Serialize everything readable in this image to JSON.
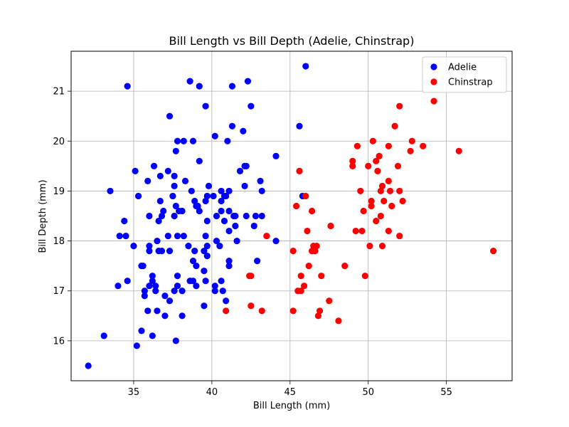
{
  "chart_data": {
    "type": "scatter",
    "title": "Bill Length vs Bill Depth (Adelie, Chinstrap)",
    "xlabel": "Bill Length (mm)",
    "ylabel": "Bill Depth (mm)",
    "xlim": [
      31.0,
      59.2
    ],
    "ylim": [
      15.2,
      21.8
    ],
    "xticks": [
      35,
      40,
      45,
      50,
      55
    ],
    "yticks": [
      16,
      17,
      18,
      19,
      20,
      21
    ],
    "grid": true,
    "legend_position": "top-right",
    "series": [
      {
        "name": "Adelie",
        "color": "#0000ff",
        "points": [
          [
            32.1,
            15.5
          ],
          [
            33.1,
            16.1
          ],
          [
            33.5,
            19.0
          ],
          [
            34.0,
            17.1
          ],
          [
            34.1,
            18.1
          ],
          [
            34.4,
            18.4
          ],
          [
            34.5,
            18.1
          ],
          [
            34.6,
            21.1
          ],
          [
            34.6,
            17.2
          ],
          [
            35.0,
            17.9
          ],
          [
            35.1,
            19.4
          ],
          [
            35.2,
            15.9
          ],
          [
            35.3,
            18.9
          ],
          [
            35.5,
            17.5
          ],
          [
            35.5,
            16.2
          ],
          [
            35.6,
            17.5
          ],
          [
            35.7,
            17.0
          ],
          [
            35.7,
            16.9
          ],
          [
            35.9,
            16.6
          ],
          [
            35.9,
            19.2
          ],
          [
            36.0,
            18.5
          ],
          [
            36.0,
            17.9
          ],
          [
            36.0,
            17.1
          ],
          [
            36.0,
            17.8
          ],
          [
            36.2,
            17.2
          ],
          [
            36.2,
            17.3
          ],
          [
            36.2,
            16.1
          ],
          [
            36.3,
            19.5
          ],
          [
            36.4,
            17.0
          ],
          [
            36.4,
            17.1
          ],
          [
            36.5,
            16.6
          ],
          [
            36.5,
            18.0
          ],
          [
            36.6,
            17.8
          ],
          [
            36.6,
            18.4
          ],
          [
            36.7,
            18.8
          ],
          [
            36.7,
            19.3
          ],
          [
            36.8,
            18.5
          ],
          [
            36.9,
            18.6
          ],
          [
            37.0,
            16.9
          ],
          [
            37.0,
            16.5
          ],
          [
            37.2,
            18.1
          ],
          [
            37.2,
            19.4
          ],
          [
            37.3,
            16.8
          ],
          [
            37.3,
            17.8
          ],
          [
            37.3,
            20.5
          ],
          [
            37.5,
            18.9
          ],
          [
            37.6,
            17.0
          ],
          [
            37.6,
            18.5
          ],
          [
            37.6,
            19.1
          ],
          [
            37.6,
            19.3
          ],
          [
            37.7,
            16.0
          ],
          [
            37.7,
            18.7
          ],
          [
            37.7,
            19.8
          ],
          [
            37.8,
            18.1
          ],
          [
            37.8,
            17.3
          ],
          [
            37.8,
            20.0
          ],
          [
            37.8,
            17.1
          ],
          [
            37.9,
            18.6
          ],
          [
            38.1,
            18.6
          ],
          [
            38.1,
            17.0
          ],
          [
            38.1,
            16.5
          ],
          [
            38.2,
            18.1
          ],
          [
            38.2,
            20.0
          ],
          [
            38.3,
            19.2
          ],
          [
            38.5,
            17.9
          ],
          [
            38.6,
            17.2
          ],
          [
            38.6,
            21.2
          ],
          [
            38.7,
            19.0
          ],
          [
            38.8,
            17.2
          ],
          [
            38.8,
            17.6
          ],
          [
            38.8,
            20.0
          ],
          [
            38.9,
            17.8
          ],
          [
            38.9,
            18.8
          ],
          [
            39.0,
            17.1
          ],
          [
            39.0,
            17.5
          ],
          [
            39.0,
            18.7
          ],
          [
            39.1,
            18.7
          ],
          [
            39.2,
            18.6
          ],
          [
            39.2,
            19.6
          ],
          [
            39.2,
            21.1
          ],
          [
            39.5,
            16.7
          ],
          [
            39.5,
            17.4
          ],
          [
            39.5,
            17.8
          ],
          [
            39.6,
            17.2
          ],
          [
            39.6,
            18.1
          ],
          [
            39.6,
            20.7
          ],
          [
            39.6,
            18.8
          ],
          [
            39.7,
            17.7
          ],
          [
            39.7,
            17.9
          ],
          [
            39.7,
            18.4
          ],
          [
            39.7,
            18.9
          ],
          [
            39.8,
            19.1
          ],
          [
            40.1,
            18.9
          ],
          [
            40.2,
            17.0
          ],
          [
            40.2,
            17.1
          ],
          [
            40.2,
            20.1
          ],
          [
            40.3,
            18.0
          ],
          [
            40.3,
            18.5
          ],
          [
            40.5,
            17.9
          ],
          [
            40.6,
            17.2
          ],
          [
            40.6,
            18.6
          ],
          [
            40.6,
            18.8
          ],
          [
            40.6,
            19.0
          ],
          [
            40.7,
            17.0
          ],
          [
            40.8,
            18.4
          ],
          [
            40.8,
            18.9
          ],
          [
            40.9,
            16.8
          ],
          [
            40.9,
            18.9
          ],
          [
            41.0,
            20.0
          ],
          [
            41.1,
            17.5
          ],
          [
            41.1,
            17.6
          ],
          [
            41.1,
            18.2
          ],
          [
            41.1,
            18.6
          ],
          [
            41.1,
            19.0
          ],
          [
            41.3,
            20.3
          ],
          [
            41.3,
            21.1
          ],
          [
            41.4,
            18.5
          ],
          [
            41.5,
            18.3
          ],
          [
            41.5,
            18.5
          ],
          [
            41.6,
            18.0
          ],
          [
            41.8,
            19.4
          ],
          [
            42.0,
            20.2
          ],
          [
            42.1,
            19.1
          ],
          [
            42.2,
            18.5
          ],
          [
            42.2,
            19.5
          ],
          [
            42.3,
            21.2
          ],
          [
            42.5,
            20.7
          ],
          [
            42.7,
            18.3
          ],
          [
            42.8,
            18.5
          ],
          [
            42.9,
            17.6
          ],
          [
            43.1,
            19.2
          ],
          [
            43.2,
            18.5
          ],
          [
            43.2,
            19.0
          ],
          [
            44.1,
            18.0
          ],
          [
            44.1,
            19.7
          ],
          [
            45.6,
            20.3
          ],
          [
            45.8,
            18.9
          ],
          [
            46.0,
            21.5
          ],
          [
            42.1,
            19.5
          ],
          [
            36.8,
            17.8
          ]
        ]
      },
      {
        "name": "Chinstrap",
        "color": "#ff0000",
        "points": [
          [
            40.9,
            16.6
          ],
          [
            42.4,
            17.3
          ],
          [
            42.5,
            16.7
          ],
          [
            42.5,
            17.3
          ],
          [
            43.2,
            16.6
          ],
          [
            43.5,
            18.1
          ],
          [
            45.2,
            16.6
          ],
          [
            45.2,
            17.8
          ],
          [
            45.4,
            18.7
          ],
          [
            45.5,
            17.0
          ],
          [
            45.6,
            19.4
          ],
          [
            45.7,
            17.0
          ],
          [
            45.7,
            17.3
          ],
          [
            45.9,
            17.1
          ],
          [
            46.0,
            18.9
          ],
          [
            46.1,
            18.2
          ],
          [
            46.2,
            17.5
          ],
          [
            46.4,
            18.6
          ],
          [
            46.4,
            17.8
          ],
          [
            46.5,
            17.9
          ],
          [
            46.6,
            17.8
          ],
          [
            46.7,
            17.9
          ],
          [
            46.8,
            16.5
          ],
          [
            46.9,
            16.6
          ],
          [
            47.0,
            17.3
          ],
          [
            47.5,
            16.8
          ],
          [
            47.6,
            18.3
          ],
          [
            48.1,
            16.4
          ],
          [
            48.5,
            17.5
          ],
          [
            49.0,
            19.5
          ],
          [
            49.0,
            19.6
          ],
          [
            49.2,
            18.2
          ],
          [
            49.3,
            19.9
          ],
          [
            49.5,
            19.0
          ],
          [
            49.6,
            18.2
          ],
          [
            49.7,
            18.6
          ],
          [
            49.8,
            17.3
          ],
          [
            50.0,
            19.5
          ],
          [
            50.1,
            17.9
          ],
          [
            50.2,
            18.7
          ],
          [
            50.2,
            18.8
          ],
          [
            50.3,
            20.0
          ],
          [
            50.5,
            18.4
          ],
          [
            50.5,
            19.6
          ],
          [
            50.6,
            19.4
          ],
          [
            50.7,
            19.7
          ],
          [
            50.8,
            18.5
          ],
          [
            50.8,
            19.0
          ],
          [
            50.9,
            17.9
          ],
          [
            50.9,
            19.1
          ],
          [
            51.0,
            18.8
          ],
          [
            51.3,
            18.2
          ],
          [
            51.3,
            19.2
          ],
          [
            51.3,
            19.9
          ],
          [
            51.4,
            19.0
          ],
          [
            51.5,
            18.7
          ],
          [
            51.7,
            20.3
          ],
          [
            51.9,
            19.5
          ],
          [
            52.0,
            18.1
          ],
          [
            52.0,
            19.0
          ],
          [
            52.0,
            20.7
          ],
          [
            52.2,
            18.8
          ],
          [
            52.7,
            19.8
          ],
          [
            52.8,
            20.0
          ],
          [
            53.5,
            19.9
          ],
          [
            54.2,
            20.8
          ],
          [
            55.8,
            19.8
          ],
          [
            58.0,
            17.8
          ]
        ]
      }
    ]
  }
}
